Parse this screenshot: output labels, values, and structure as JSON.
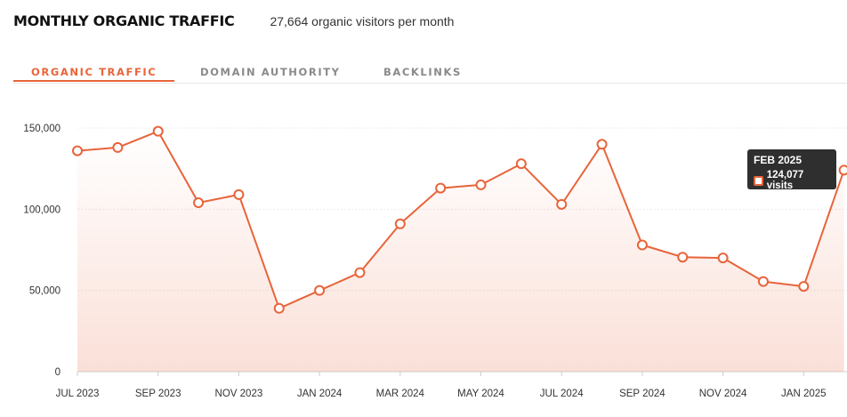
{
  "header": {
    "title": "MONTHLY ORGANIC TRAFFIC",
    "subtitle": "27,664 organic visitors per month"
  },
  "tabs": [
    {
      "label": "ORGANIC TRAFFIC",
      "active": true
    },
    {
      "label": "DOMAIN AUTHORITY",
      "active": false
    },
    {
      "label": "BACKLINKS",
      "active": false
    }
  ],
  "colors": {
    "accent": "#e8643a",
    "tooltip_bg": "#2f2f2f"
  },
  "tooltip": {
    "title": "FEB 2025",
    "value_text": "124,077 visits"
  },
  "chart_data": {
    "type": "area",
    "x": [
      "JUL 2023",
      "AUG 2023",
      "SEP 2023",
      "OCT 2023",
      "NOV 2023",
      "DEC 2023",
      "JAN 2024",
      "FEB 2024",
      "MAR 2024",
      "APR 2024",
      "MAY 2024",
      "JUN 2024",
      "JUL 2024",
      "AUG 2024",
      "SEP 2024",
      "OCT 2024",
      "NOV 2024",
      "DEC 2024",
      "JAN 2025",
      "FEB 2025"
    ],
    "series": [
      {
        "values": [
          136000,
          138000,
          148000,
          104000,
          109000,
          39000,
          50000,
          61000,
          91000,
          113000,
          115000,
          128000,
          103000,
          140000,
          78000,
          70500,
          70000,
          55500,
          52500,
          124077
        ]
      }
    ],
    "xtick_labels": [
      "JUL 2023",
      "SEP 2023",
      "NOV 2023",
      "JAN 2024",
      "MAR 2024",
      "MAY 2024",
      "JUL 2024",
      "SEP 2024",
      "NOV 2024",
      "JAN 2025"
    ],
    "yticks": [
      0,
      50000,
      100000,
      150000
    ],
    "ytick_labels": [
      "0",
      "50,000",
      "100,000",
      "150,000"
    ],
    "ylim": [
      0,
      150000
    ],
    "grid": true,
    "highlighted_point": "FEB 2025"
  }
}
